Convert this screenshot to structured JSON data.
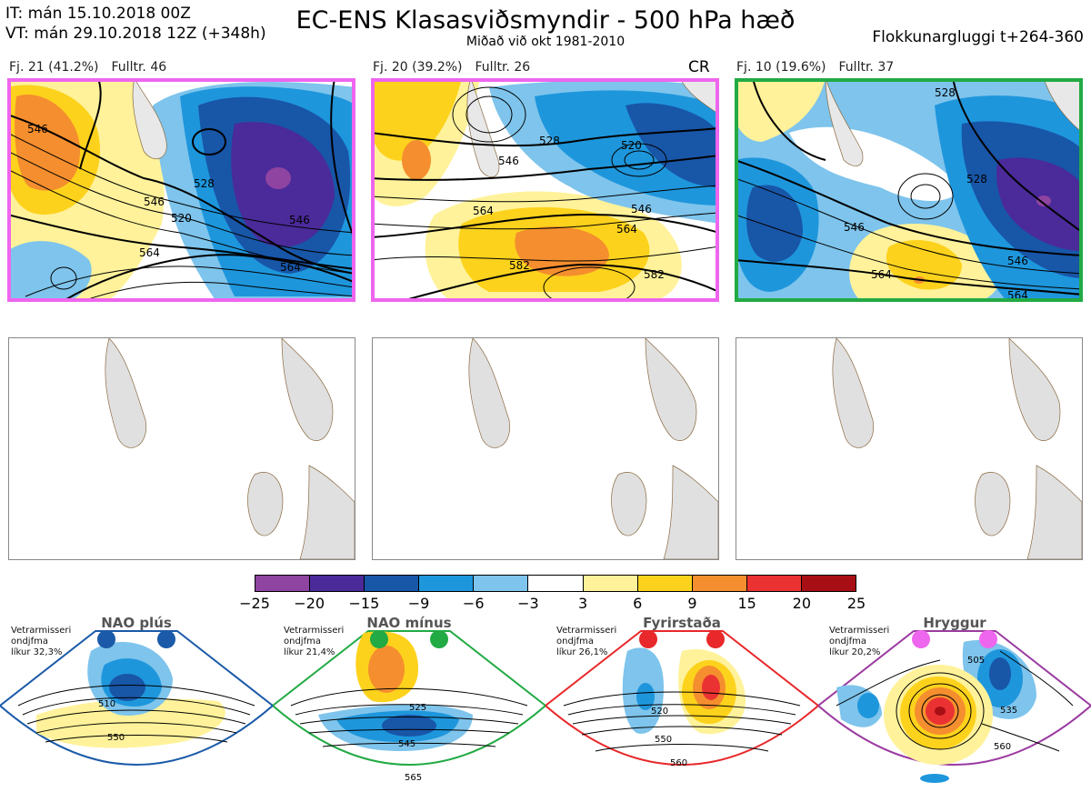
{
  "header": {
    "it_line": "IT: mán 15.10.2018 00Z",
    "vt_line": "VT: mán 29.10.2018 12Z  (+348h)",
    "title": "EC-ENS Klasasviðsmyndir - 500 hPa hæð",
    "subtitle": "Miðað við okt 1981-2010",
    "window": "Flokkunargluggi t+264-360"
  },
  "clusters": [
    {
      "label": "Fj. 21 (41.2%)",
      "fulltr": "Fulltr. 46",
      "marker": "",
      "border_color": "#ee66ee",
      "contours": [
        "520",
        "528",
        "546",
        "546",
        "564",
        "564",
        "546"
      ]
    },
    {
      "label": "Fj. 20 (39.2%)",
      "fulltr": "Fulltr. 26",
      "marker": "CR",
      "border_color": "#ee66ee",
      "contours": [
        "520",
        "528",
        "546",
        "564",
        "564",
        "582",
        "582",
        "546"
      ]
    },
    {
      "label": "Fj. 10 (19.6%)",
      "fulltr": "Fulltr. 37",
      "marker": "",
      "border_color": "#22aa44",
      "contours": [
        "528",
        "546",
        "546",
        "564",
        "564",
        "528"
      ]
    }
  ],
  "colorbar": {
    "colors": [
      "#8e44a0",
      "#4b2a9a",
      "#1856a8",
      "#1e96dc",
      "#7ec4ec",
      "#ffffff",
      "#fff29a",
      "#fdd21c",
      "#f58e2e",
      "#ea3232",
      "#a80f14"
    ],
    "ticks": [
      "−25",
      "−20",
      "−15",
      "−9",
      "−6",
      "−3",
      "3",
      "6",
      "9",
      "15",
      "20",
      "25"
    ]
  },
  "regimes": [
    {
      "title": "NAO plús",
      "info": [
        "Vetrarmisseri",
        "ondjfma",
        "líkur 32,3%"
      ],
      "color": "#1a5aa8",
      "contours": [
        "510",
        "550"
      ]
    },
    {
      "title": "NAO mínus",
      "info": [
        "Vetrarmisseri",
        "ondjfma",
        "líkur 21,4%"
      ],
      "color": "#22aa44",
      "contours": [
        "525",
        "545",
        "565"
      ]
    },
    {
      "title": "Fyrirstaða",
      "info": [
        "Vetrarmisseri",
        "ondjfma",
        "líkur 26,1%"
      ],
      "color": "#e8282a",
      "contours": [
        "520",
        "550",
        "560"
      ]
    },
    {
      "title": "Hryggur",
      "info": [
        "Vetrarmisseri",
        "ondjfma",
        "líkur 20,2%"
      ],
      "color": "#9a3aa0",
      "contours": [
        "505",
        "535",
        "560"
      ]
    }
  ]
}
